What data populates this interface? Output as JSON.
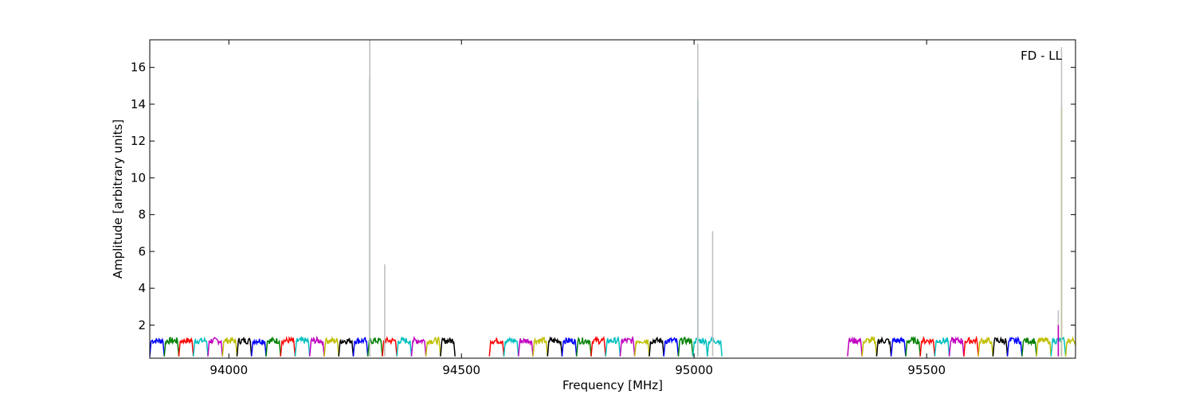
{
  "chart_data": {
    "type": "line",
    "annotation": "FD - LL",
    "xlabel": "Frequency [MHz]",
    "ylabel": "Amplitude [arbitrary units]",
    "xlim": [
      93830,
      95820
    ],
    "ylim": [
      0.2,
      17.5
    ],
    "xticks": [
      94000,
      94500,
      95000,
      95500
    ],
    "yticks": [
      2,
      4,
      6,
      8,
      10,
      12,
      14,
      16
    ],
    "grid": false,
    "legend": "none",
    "band_groups": [
      {
        "start": 93830,
        "channel_width": 31.25,
        "channels": 21,
        "colors": [
          "#0000ff",
          "#008000",
          "#ff0000",
          "#00bfbf",
          "#bf00bf",
          "#bfbf00",
          "#000000",
          "#0000ff",
          "#008000",
          "#ff0000",
          "#00bfbf",
          "#bf00bf",
          "#bfbf00",
          "#000000",
          "#0000ff",
          "#008000",
          "#ff0000",
          "#00bfbf",
          "#bf00bf",
          "#bfbf00",
          "#000000"
        ]
      },
      {
        "start": 94560,
        "channel_width": 31.25,
        "channels": 16,
        "colors": [
          "#ff0000",
          "#00bfbf",
          "#bf00bf",
          "#bfbf00",
          "#000000",
          "#0000ff",
          "#008000",
          "#ff0000",
          "#00bfbf",
          "#bf00bf",
          "#bfbf00",
          "#000000",
          "#0000ff",
          "#008000",
          "#00bfbf",
          "#00bfbf"
        ]
      },
      {
        "start": 95330,
        "channel_width": 31.25,
        "channels": 16,
        "colors": [
          "#bf00bf",
          "#bfbf00",
          "#000000",
          "#0000ff",
          "#008000",
          "#ff0000",
          "#00bfbf",
          "#bf00bf",
          "#ff0000",
          "#bfbf00",
          "#000000",
          "#0000ff",
          "#008000",
          "#bfbf00",
          "#00bfbf",
          "#bfbf00"
        ]
      }
    ],
    "spikes": [
      {
        "x": 94303,
        "value": 15.4,
        "color": "#008000"
      },
      {
        "x": 94303,
        "value": 17.5,
        "color": "#c0c0c0"
      },
      {
        "x": 94335,
        "value": 5.3,
        "color": "#c0c0c0"
      },
      {
        "x": 95008,
        "value": 14.2,
        "color": "#00bfbf"
      },
      {
        "x": 95008,
        "value": 17.3,
        "color": "#c0c0c0"
      },
      {
        "x": 95040,
        "value": 7.1,
        "color": "#c0c0c0"
      },
      {
        "x": 95790,
        "value": 13.8,
        "color": "#bfbf00"
      },
      {
        "x": 95790,
        "value": 17.1,
        "color": "#c0c0c0"
      },
      {
        "x": 95783,
        "value": 2.8,
        "color": "#c0c0c0"
      },
      {
        "x": 95783,
        "value": 2.0,
        "color": "#bf00bf"
      }
    ]
  }
}
